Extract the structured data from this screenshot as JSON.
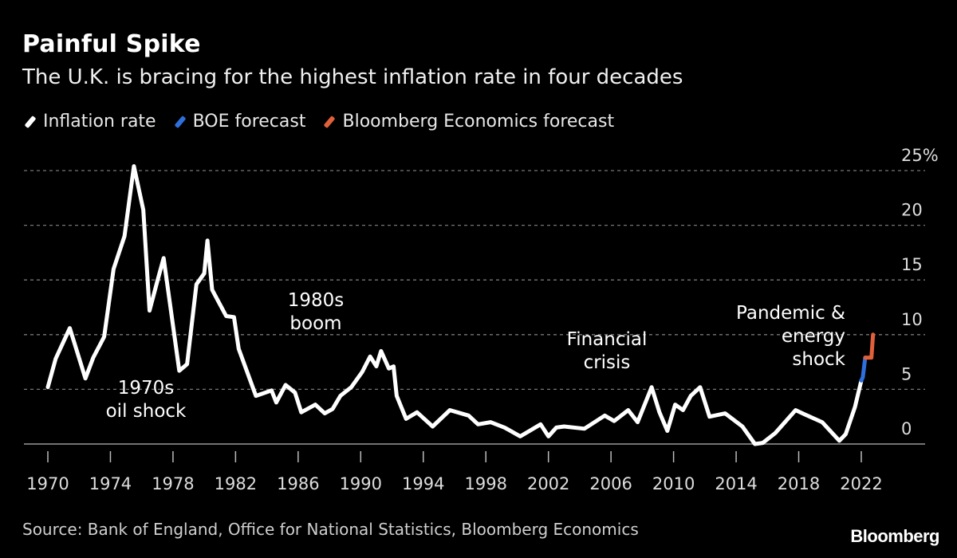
{
  "header": {
    "title": "Painful Spike",
    "subtitle": "The U.K. is bracing for the highest inflation rate in four decades"
  },
  "legend": [
    {
      "label": "Inflation rate",
      "color": "#ffffff"
    },
    {
      "label": "BOE forecast",
      "color": "#2f6fdc"
    },
    {
      "label": "Bloomberg Economics forecast",
      "color": "#e0603a"
    }
  ],
  "footer": {
    "source": "Source: Bank of England, Office for National Statistics, Bloomberg Economics",
    "logo": "Bloomberg"
  },
  "chart_data": {
    "type": "line",
    "title": "Painful Spike",
    "subtitle": "The U.K. is bracing for the highest inflation rate in four decades",
    "xlabel": "",
    "ylabel": "",
    "xlim": [
      1969.5,
      2024.5
    ],
    "ylim": [
      0,
      25
    ],
    "y_unit": "%",
    "grid": true,
    "legend_position": "top-left",
    "x_ticks": [
      "1970",
      "1974",
      "1978",
      "1982",
      "1986",
      "1990",
      "1994",
      "1998",
      "2002",
      "2006",
      "2010",
      "2014",
      "2018",
      "2022"
    ],
    "y_ticks": [
      "0",
      "5",
      "10",
      "15",
      "20",
      "25%"
    ],
    "annotations": [
      {
        "lines": [
          "1970s",
          "oil shock"
        ]
      },
      {
        "lines": [
          "1980s",
          "boom"
        ]
      },
      {
        "lines": [
          "Financial",
          "crisis"
        ]
      },
      {
        "lines": [
          "Pandemic &",
          "energy",
          "shock"
        ]
      }
    ],
    "series": [
      {
        "name": "Inflation rate",
        "color": "#ffffff",
        "points": [
          [
            1970.0,
            5.2
          ],
          [
            1970.5,
            7.8
          ],
          [
            1971.4,
            10.6
          ],
          [
            1972.4,
            6.0
          ],
          [
            1972.9,
            7.9
          ],
          [
            1973.6,
            9.8
          ],
          [
            1974.2,
            16.0
          ],
          [
            1974.9,
            19.0
          ],
          [
            1975.5,
            25.4
          ],
          [
            1976.1,
            21.4
          ],
          [
            1976.5,
            12.2
          ],
          [
            1977.0,
            14.9
          ],
          [
            1977.4,
            17.0
          ],
          [
            1978.4,
            6.7
          ],
          [
            1978.9,
            7.3
          ],
          [
            1979.5,
            14.6
          ],
          [
            1980.0,
            15.6
          ],
          [
            1980.2,
            18.6
          ],
          [
            1980.5,
            14.1
          ],
          [
            1981.4,
            11.7
          ],
          [
            1981.9,
            11.6
          ],
          [
            1982.2,
            8.7
          ],
          [
            1983.3,
            4.4
          ],
          [
            1984.3,
            4.9
          ],
          [
            1984.6,
            3.8
          ],
          [
            1985.2,
            5.4
          ],
          [
            1985.8,
            4.7
          ],
          [
            1986.2,
            2.9
          ],
          [
            1987.1,
            3.6
          ],
          [
            1987.7,
            2.8
          ],
          [
            1988.2,
            3.2
          ],
          [
            1988.7,
            4.4
          ],
          [
            1989.4,
            5.2
          ],
          [
            1990.1,
            6.6
          ],
          [
            1990.6,
            8.0
          ],
          [
            1991.0,
            7.1
          ],
          [
            1991.3,
            8.5
          ],
          [
            1991.8,
            6.9
          ],
          [
            1992.1,
            7.1
          ],
          [
            1992.3,
            4.4
          ],
          [
            1992.9,
            2.3
          ],
          [
            1993.6,
            2.9
          ],
          [
            1994.6,
            1.6
          ],
          [
            1995.7,
            3.1
          ],
          [
            1996.9,
            2.6
          ],
          [
            1997.5,
            1.8
          ],
          [
            1998.3,
            2.0
          ],
          [
            1999.2,
            1.5
          ],
          [
            2000.2,
            0.7
          ],
          [
            2001.5,
            1.8
          ],
          [
            2002.0,
            0.7
          ],
          [
            2002.5,
            1.5
          ],
          [
            2003.0,
            1.6
          ],
          [
            2004.3,
            1.4
          ],
          [
            2005.6,
            2.6
          ],
          [
            2006.2,
            2.1
          ],
          [
            2007.1,
            3.1
          ],
          [
            2007.7,
            2.0
          ],
          [
            2008.6,
            5.2
          ],
          [
            2009.1,
            2.9
          ],
          [
            2009.6,
            1.2
          ],
          [
            2010.1,
            3.6
          ],
          [
            2010.6,
            3.1
          ],
          [
            2011.1,
            4.4
          ],
          [
            2011.7,
            5.2
          ],
          [
            2012.3,
            2.5
          ],
          [
            2013.3,
            2.8
          ],
          [
            2014.4,
            1.6
          ],
          [
            2015.2,
            0.0
          ],
          [
            2015.7,
            0.1
          ],
          [
            2016.5,
            1.0
          ],
          [
            2017.8,
            3.1
          ],
          [
            2018.4,
            2.7
          ],
          [
            2019.5,
            2.0
          ],
          [
            2020.6,
            0.3
          ],
          [
            2021.0,
            0.9
          ],
          [
            2021.6,
            3.4
          ],
          [
            2022.0,
            5.8
          ]
        ]
      },
      {
        "name": "BOE forecast",
        "color": "#2f6fdc",
        "points": [
          [
            2022.0,
            5.8
          ],
          [
            2022.1,
            6.1
          ],
          [
            2022.25,
            7.9
          ]
        ]
      },
      {
        "name": "Bloomberg Economics forecast",
        "color": "#e0603a",
        "points": [
          [
            2022.25,
            7.9
          ],
          [
            2022.65,
            7.9
          ],
          [
            2022.75,
            10.0
          ]
        ]
      }
    ]
  }
}
